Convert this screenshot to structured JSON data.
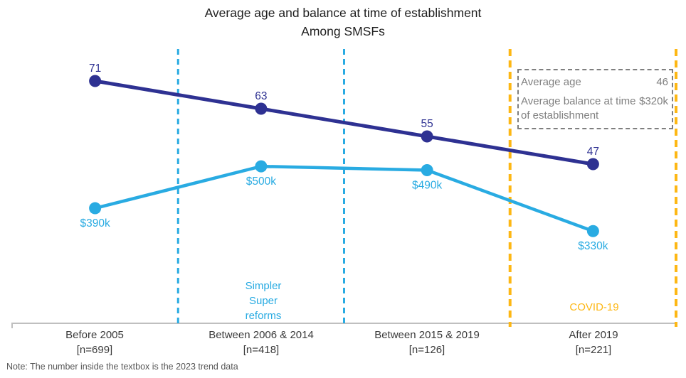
{
  "note": "Note: The number inside the textbox is the 2023 trend data",
  "colors": {
    "age_series": "#2E3192",
    "balance_series": "#29ABE2",
    "reform_divider": "#29ABE2",
    "event_divider": "#FDB714",
    "axis": "#BFBFBF",
    "textbox_border": "#7F7F7F",
    "textbox_text": "#808080"
  },
  "chart_data": {
    "type": "line",
    "title": "Average age and balance at time of establishment",
    "subtitle": "Among SMSFs",
    "grid": false,
    "legend_position": "top-right-dashed-textbox",
    "categories": [
      {
        "label": "Before 2005",
        "n": "[n=699]"
      },
      {
        "label": "Between 2006 & 2014",
        "n": "[n=418]"
      },
      {
        "label": "Between 2015 & 2019",
        "n": "[n=126]"
      },
      {
        "label": "After 2019",
        "n": "[n=221]"
      }
    ],
    "series": [
      {
        "name": "Average age",
        "unit": "years",
        "color": "#2E3192",
        "values": [
          71,
          63,
          55,
          47
        ],
        "point_labels": [
          "71",
          "63",
          "55",
          "47"
        ],
        "label_side": "above",
        "trend_2023": "46"
      },
      {
        "name": "Average balance at time of establishment",
        "unit": "$k",
        "color": "#29ABE2",
        "values": [
          390,
          500,
          490,
          330
        ],
        "point_labels": [
          "$390k",
          "$500k",
          "$490k",
          "$330k"
        ],
        "label_side": "below",
        "trend_2023": "$320k"
      }
    ],
    "dividers": [
      {
        "boundary": 1,
        "color": "#29ABE2",
        "label": "Simpler Super reforms"
      },
      {
        "boundary": 2,
        "color": "#29ABE2",
        "label": ""
      },
      {
        "boundary": 3,
        "color": "#FDB714",
        "label": "COVID-19"
      },
      {
        "boundary": 4,
        "color": "#FDB714",
        "label": ""
      }
    ]
  }
}
